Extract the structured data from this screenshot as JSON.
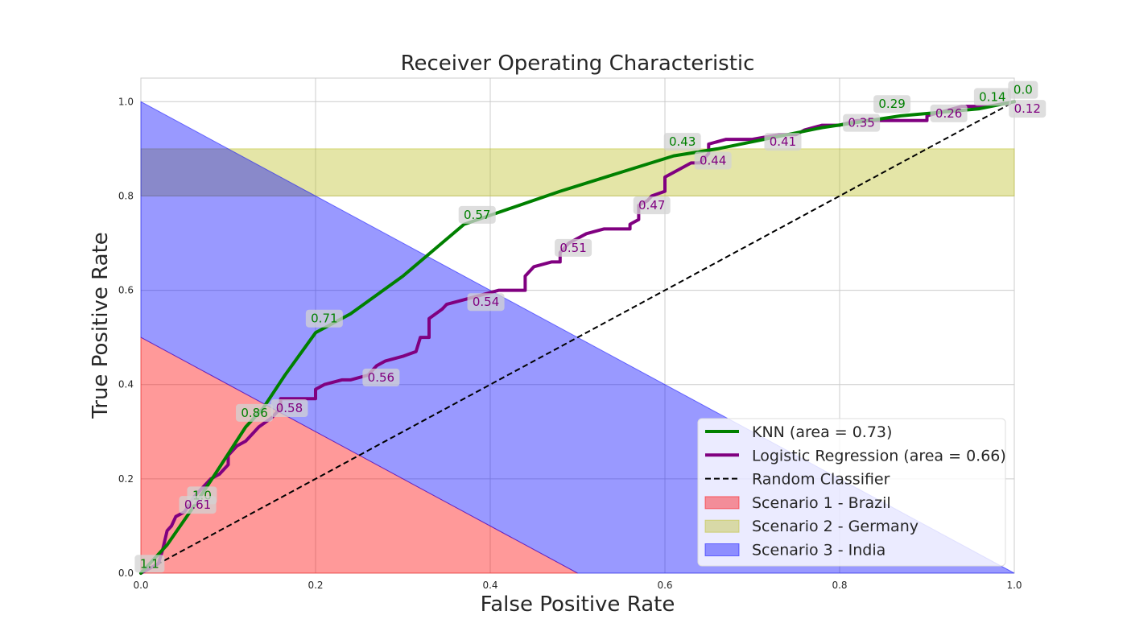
{
  "chart_data": {
    "type": "line",
    "title": "Receiver Operating Characteristic",
    "xlabel": "False Positive Rate",
    "ylabel": "True Positive Rate",
    "xlim": [
      0.0,
      1.0
    ],
    "ylim": [
      0.0,
      1.05
    ],
    "x_ticks": [
      "0.0",
      "0.2",
      "0.4",
      "0.6",
      "0.8",
      "1.0"
    ],
    "y_ticks": [
      "0.0",
      "0.2",
      "0.4",
      "0.6",
      "0.8",
      "1.0"
    ],
    "grid": true,
    "legend_position": "lower-right",
    "series": [
      {
        "name": "KNN (area = 0.73)",
        "color": "#008000",
        "style": "solid",
        "points": [
          [
            0,
            0
          ],
          [
            0.01,
            0.02
          ],
          [
            0.03,
            0.06
          ],
          [
            0.06,
            0.14
          ],
          [
            0.085,
            0.21
          ],
          [
            0.12,
            0.31
          ],
          [
            0.14,
            0.35
          ],
          [
            0.165,
            0.42
          ],
          [
            0.2,
            0.51
          ],
          [
            0.24,
            0.55
          ],
          [
            0.3,
            0.63
          ],
          [
            0.37,
            0.74
          ],
          [
            0.48,
            0.81
          ],
          [
            0.61,
            0.885
          ],
          [
            0.66,
            0.9
          ],
          [
            0.78,
            0.945
          ],
          [
            0.87,
            0.97
          ],
          [
            0.96,
            0.985
          ],
          [
            1.0,
            1.0
          ]
        ],
        "annotations": [
          {
            "x": 0.01,
            "y": 0.02,
            "label": "1.1"
          },
          {
            "x": 0.07,
            "y": 0.165,
            "label": "1.0"
          },
          {
            "x": 0.13,
            "y": 0.34,
            "label": "0.86"
          },
          {
            "x": 0.21,
            "y": 0.54,
            "label": "0.71"
          },
          {
            "x": 0.385,
            "y": 0.76,
            "label": "0.57"
          },
          {
            "x": 0.62,
            "y": 0.915,
            "label": "0.43"
          },
          {
            "x": 0.86,
            "y": 0.995,
            "label": "0.29"
          },
          {
            "x": 0.975,
            "y": 1.01,
            "label": "0.14"
          },
          {
            "x": 1.01,
            "y": 1.025,
            "label": "0.0"
          }
        ]
      },
      {
        "name": "Logistic Regression (area = 0.66)",
        "color": "#800080",
        "style": "solid",
        "points": [
          [
            0,
            0
          ],
          [
            0.02,
            0.02
          ],
          [
            0.025,
            0.05
          ],
          [
            0.03,
            0.09
          ],
          [
            0.035,
            0.1
          ],
          [
            0.04,
            0.12
          ],
          [
            0.05,
            0.13
          ],
          [
            0.06,
            0.16
          ],
          [
            0.065,
            0.17
          ],
          [
            0.08,
            0.2
          ],
          [
            0.09,
            0.21
          ],
          [
            0.1,
            0.23
          ],
          [
            0.1,
            0.25
          ],
          [
            0.11,
            0.27
          ],
          [
            0.12,
            0.28
          ],
          [
            0.13,
            0.3
          ],
          [
            0.135,
            0.31
          ],
          [
            0.15,
            0.33
          ],
          [
            0.16,
            0.35
          ],
          [
            0.16,
            0.37
          ],
          [
            0.2,
            0.37
          ],
          [
            0.2,
            0.39
          ],
          [
            0.21,
            0.4
          ],
          [
            0.23,
            0.41
          ],
          [
            0.24,
            0.41
          ],
          [
            0.26,
            0.42
          ],
          [
            0.27,
            0.44
          ],
          [
            0.28,
            0.45
          ],
          [
            0.3,
            0.46
          ],
          [
            0.315,
            0.47
          ],
          [
            0.32,
            0.5
          ],
          [
            0.33,
            0.5
          ],
          [
            0.33,
            0.54
          ],
          [
            0.345,
            0.56
          ],
          [
            0.35,
            0.57
          ],
          [
            0.37,
            0.58
          ],
          [
            0.39,
            0.59
          ],
          [
            0.41,
            0.6
          ],
          [
            0.44,
            0.6
          ],
          [
            0.44,
            0.63
          ],
          [
            0.45,
            0.65
          ],
          [
            0.47,
            0.66
          ],
          [
            0.48,
            0.66
          ],
          [
            0.48,
            0.68
          ],
          [
            0.49,
            0.7
          ],
          [
            0.5,
            0.71
          ],
          [
            0.51,
            0.72
          ],
          [
            0.53,
            0.73
          ],
          [
            0.56,
            0.73
          ],
          [
            0.56,
            0.74
          ],
          [
            0.57,
            0.75
          ],
          [
            0.57,
            0.78
          ],
          [
            0.58,
            0.79
          ],
          [
            0.585,
            0.8
          ],
          [
            0.6,
            0.81
          ],
          [
            0.6,
            0.84
          ],
          [
            0.61,
            0.85
          ],
          [
            0.62,
            0.86
          ],
          [
            0.63,
            0.87
          ],
          [
            0.64,
            0.87
          ],
          [
            0.65,
            0.89
          ],
          [
            0.65,
            0.91
          ],
          [
            0.67,
            0.92
          ],
          [
            0.7,
            0.92
          ],
          [
            0.73,
            0.93
          ],
          [
            0.75,
            0.93
          ],
          [
            0.76,
            0.94
          ],
          [
            0.78,
            0.95
          ],
          [
            0.8,
            0.95
          ],
          [
            0.82,
            0.96
          ],
          [
            0.84,
            0.96
          ],
          [
            0.86,
            0.96
          ],
          [
            0.88,
            0.96
          ],
          [
            0.9,
            0.96
          ],
          [
            0.9,
            0.97
          ],
          [
            0.92,
            0.98
          ],
          [
            0.94,
            0.99
          ],
          [
            0.97,
            0.99
          ],
          [
            1.0,
            1.0
          ]
        ],
        "annotations": [
          {
            "x": 0.065,
            "y": 0.145,
            "label": "0.61"
          },
          {
            "x": 0.17,
            "y": 0.35,
            "label": "0.58"
          },
          {
            "x": 0.275,
            "y": 0.415,
            "label": "0.56"
          },
          {
            "x": 0.395,
            "y": 0.575,
            "label": "0.54"
          },
          {
            "x": 0.495,
            "y": 0.69,
            "label": "0.51"
          },
          {
            "x": 0.585,
            "y": 0.78,
            "label": "0.47"
          },
          {
            "x": 0.655,
            "y": 0.875,
            "label": "0.44"
          },
          {
            "x": 0.735,
            "y": 0.915,
            "label": "0.41"
          },
          {
            "x": 0.825,
            "y": 0.955,
            "label": "0.35"
          },
          {
            "x": 0.925,
            "y": 0.975,
            "label": "0.26"
          },
          {
            "x": 1.015,
            "y": 0.985,
            "label": "0.12"
          }
        ]
      },
      {
        "name": "Random Classifier",
        "color": "#000000",
        "style": "dashed",
        "points": [
          [
            0,
            0
          ],
          [
            1,
            1
          ]
        ]
      }
    ],
    "regions": [
      {
        "name": "Scenario 1 - Brazil",
        "color": "#ff0000",
        "opacity": 0.4,
        "polygon": [
          [
            0,
            0
          ],
          [
            0,
            0.5
          ],
          [
            0.5,
            0
          ]
        ]
      },
      {
        "name": "Scenario 2 - Germany",
        "color": "#bcbd22",
        "opacity": 0.4,
        "polygon": [
          [
            0,
            0.8
          ],
          [
            0,
            0.9
          ],
          [
            1,
            0.9
          ],
          [
            1,
            0.8
          ]
        ]
      },
      {
        "name": "Scenario 3 - India",
        "color": "#0000ff",
        "opacity": 0.4,
        "polygon": [
          [
            0,
            0.5
          ],
          [
            0,
            1
          ],
          [
            1,
            0
          ],
          [
            0.5,
            0
          ]
        ]
      }
    ]
  }
}
